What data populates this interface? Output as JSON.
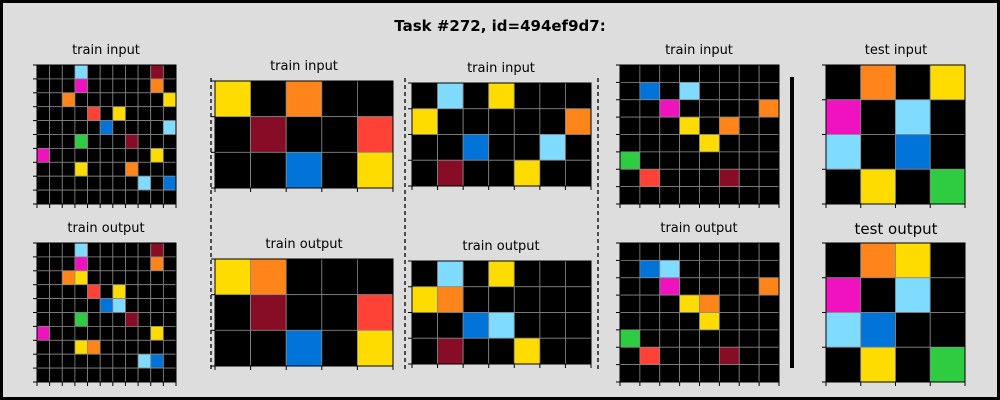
{
  "title": "Task #272, id=494ef9d7:",
  "colors": {
    "0": "#000000",
    "1": "#0074D9",
    "2": "#FF4136",
    "3": "#2ECC40",
    "4": "#FFDC00",
    "5": "#AAAAAA",
    "6": "#F012BE",
    "7": "#FF851B",
    "8": "#7FDBFF",
    "9": "#870C25"
  },
  "grid_line_color": "#888888",
  "pairs": [
    {
      "input_label": "train input",
      "output_label": "train output",
      "input": [
        [
          0,
          0,
          0,
          8,
          0,
          0,
          0,
          0,
          0,
          9,
          0
        ],
        [
          0,
          0,
          0,
          6,
          0,
          0,
          0,
          0,
          0,
          7,
          0
        ],
        [
          0,
          0,
          7,
          0,
          0,
          0,
          0,
          0,
          0,
          0,
          4
        ],
        [
          0,
          0,
          0,
          0,
          2,
          0,
          4,
          0,
          0,
          0,
          0
        ],
        [
          0,
          0,
          0,
          0,
          0,
          1,
          0,
          0,
          0,
          0,
          8
        ],
        [
          0,
          0,
          0,
          3,
          0,
          0,
          0,
          9,
          0,
          0,
          0
        ],
        [
          6,
          0,
          0,
          0,
          0,
          0,
          0,
          0,
          0,
          4,
          0
        ],
        [
          0,
          0,
          0,
          4,
          0,
          0,
          0,
          7,
          0,
          0,
          0
        ],
        [
          0,
          0,
          0,
          0,
          0,
          0,
          0,
          0,
          8,
          0,
          1
        ],
        [
          0,
          0,
          0,
          0,
          0,
          0,
          0,
          0,
          0,
          0,
          0
        ]
      ],
      "output": [
        [
          0,
          0,
          0,
          8,
          0,
          0,
          0,
          0,
          0,
          9,
          0
        ],
        [
          0,
          0,
          0,
          6,
          0,
          0,
          0,
          0,
          0,
          7,
          0
        ],
        [
          0,
          0,
          7,
          4,
          0,
          0,
          0,
          0,
          0,
          0,
          0
        ],
        [
          0,
          0,
          0,
          0,
          2,
          0,
          4,
          0,
          0,
          0,
          0
        ],
        [
          0,
          0,
          0,
          0,
          0,
          1,
          8,
          0,
          0,
          0,
          0
        ],
        [
          0,
          0,
          0,
          3,
          0,
          0,
          0,
          9,
          0,
          0,
          0
        ],
        [
          6,
          0,
          0,
          0,
          0,
          0,
          0,
          0,
          0,
          4,
          0
        ],
        [
          0,
          0,
          0,
          4,
          7,
          0,
          0,
          0,
          0,
          0,
          0
        ],
        [
          0,
          0,
          0,
          0,
          0,
          0,
          0,
          0,
          8,
          1,
          0
        ],
        [
          0,
          0,
          0,
          0,
          0,
          0,
          0,
          0,
          0,
          0,
          0
        ]
      ]
    },
    {
      "input_label": "train input",
      "output_label": "train output",
      "input": [
        [
          4,
          0,
          7,
          0,
          0
        ],
        [
          0,
          9,
          0,
          0,
          2
        ],
        [
          0,
          0,
          1,
          0,
          4
        ]
      ],
      "output": [
        [
          4,
          7,
          0,
          0,
          0
        ],
        [
          0,
          9,
          0,
          0,
          2
        ],
        [
          0,
          0,
          1,
          0,
          4
        ]
      ]
    },
    {
      "input_label": "train input",
      "output_label": "train output",
      "input": [
        [
          0,
          8,
          0,
          4,
          0,
          0,
          0
        ],
        [
          4,
          0,
          0,
          0,
          0,
          0,
          7
        ],
        [
          0,
          0,
          1,
          0,
          0,
          8,
          0
        ],
        [
          0,
          9,
          0,
          0,
          4,
          0,
          0
        ]
      ],
      "output": [
        [
          0,
          8,
          0,
          4,
          0,
          0,
          0
        ],
        [
          4,
          7,
          0,
          0,
          0,
          0,
          0
        ],
        [
          0,
          0,
          1,
          8,
          0,
          0,
          0
        ],
        [
          0,
          9,
          0,
          0,
          4,
          0,
          0
        ]
      ]
    },
    {
      "input_label": "train input",
      "output_label": "train output",
      "input": [
        [
          0,
          0,
          0,
          0,
          0,
          0,
          0,
          0
        ],
        [
          0,
          1,
          0,
          8,
          0,
          0,
          0,
          0
        ],
        [
          0,
          0,
          6,
          0,
          0,
          0,
          0,
          7
        ],
        [
          0,
          0,
          0,
          4,
          0,
          7,
          0,
          0
        ],
        [
          0,
          0,
          0,
          0,
          4,
          0,
          0,
          0
        ],
        [
          3,
          0,
          0,
          0,
          0,
          0,
          0,
          0
        ],
        [
          0,
          2,
          0,
          0,
          0,
          9,
          0,
          0
        ],
        [
          0,
          0,
          0,
          0,
          0,
          0,
          0,
          0
        ]
      ],
      "output": [
        [
          0,
          0,
          0,
          0,
          0,
          0,
          0,
          0
        ],
        [
          0,
          1,
          8,
          0,
          0,
          0,
          0,
          0
        ],
        [
          0,
          0,
          6,
          0,
          0,
          0,
          0,
          7
        ],
        [
          0,
          0,
          0,
          4,
          7,
          0,
          0,
          0
        ],
        [
          0,
          0,
          0,
          0,
          4,
          0,
          0,
          0
        ],
        [
          3,
          0,
          0,
          0,
          0,
          0,
          0,
          0
        ],
        [
          0,
          2,
          0,
          0,
          0,
          9,
          0,
          0
        ],
        [
          0,
          0,
          0,
          0,
          0,
          0,
          0,
          0
        ]
      ]
    }
  ],
  "test": {
    "input_label": "test input",
    "output_label": "test output",
    "input": [
      [
        0,
        7,
        0,
        4
      ],
      [
        6,
        0,
        8,
        0
      ],
      [
        8,
        0,
        1,
        0
      ],
      [
        0,
        4,
        0,
        3
      ]
    ],
    "output": [
      [
        0,
        7,
        4,
        0
      ],
      [
        6,
        0,
        8,
        0
      ],
      [
        8,
        1,
        0,
        0
      ],
      [
        0,
        4,
        0,
        3
      ]
    ]
  }
}
